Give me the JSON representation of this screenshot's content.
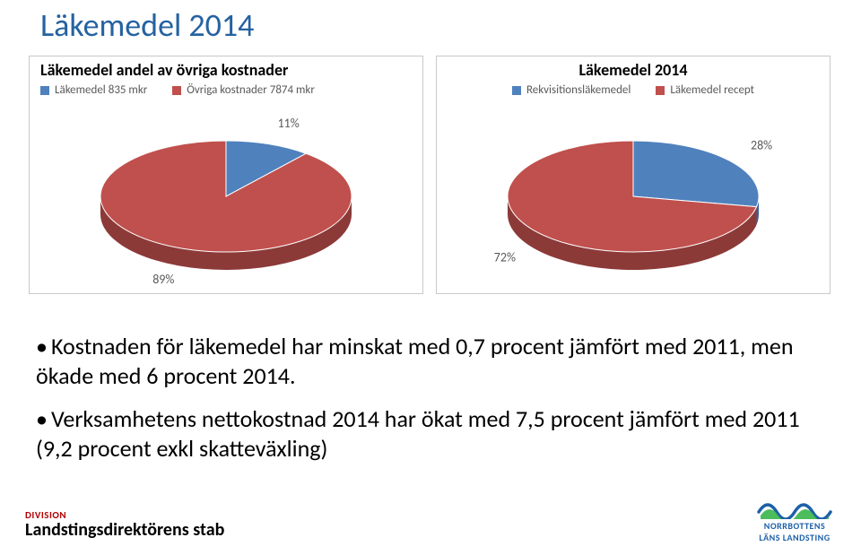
{
  "title": "Läkemedel 2014",
  "chart1": {
    "type": "pie-3d",
    "title": "Läkemedel andel av övriga kostnader",
    "legend": [
      {
        "swatch": "#4f81bd",
        "label": "Läkemedel 835 mkr"
      },
      {
        "swatch": "#c0504d",
        "label": "Övriga kostnader 7874 mkr"
      }
    ],
    "slices": [
      {
        "value": 11,
        "label": "11%",
        "fill": "#4f81bd",
        "side": "#3a6195"
      },
      {
        "value": 89,
        "label": "89%",
        "fill": "#c0504d",
        "side": "#8c3a38"
      }
    ],
    "label_color": "#595959",
    "label_fontsize": 14
  },
  "chart2": {
    "type": "pie-3d",
    "title": "Läkemedel 2014",
    "legend": [
      {
        "swatch": "#4f81bd",
        "label": "Rekvisitionsläkemedel"
      },
      {
        "swatch": "#c0504d",
        "label": "Läkemedel recept"
      }
    ],
    "slices": [
      {
        "value": 28,
        "label": "28%",
        "fill": "#4f81bd",
        "side": "#3a6195"
      },
      {
        "value": 72,
        "label": "72%",
        "fill": "#c0504d",
        "side": "#8c3a38"
      }
    ],
    "label_color": "#595959",
    "label_fontsize": 14
  },
  "bullets": [
    "Kostnaden för läkemedel har minskat med 0,7 procent jämfört med 2011, men ökade med 6 procent 2014.",
    "Verksamhetens nettokostnad 2014 har ökat med 7,5 procent jämfört med 2011  (9,2 procent exkl skatteväxling)"
  ],
  "footer": {
    "division": "DIVISION",
    "department": "Landstingsdirektörens stab"
  },
  "logo": {
    "line1": "NORRBOTTENS",
    "line2": "LÄNS LANDSTING",
    "wave_stroke": "#1c60a8",
    "wave_fill": "#39b54a"
  },
  "style": {
    "title_color": "#2562a1",
    "title_fontsize": 36,
    "card_border": "#c9c9c9",
    "chart_title_fontsize": 18,
    "legend_fontsize": 13,
    "legend_color": "#595959",
    "bullet_fontsize": 26,
    "background": "#ffffff"
  }
}
